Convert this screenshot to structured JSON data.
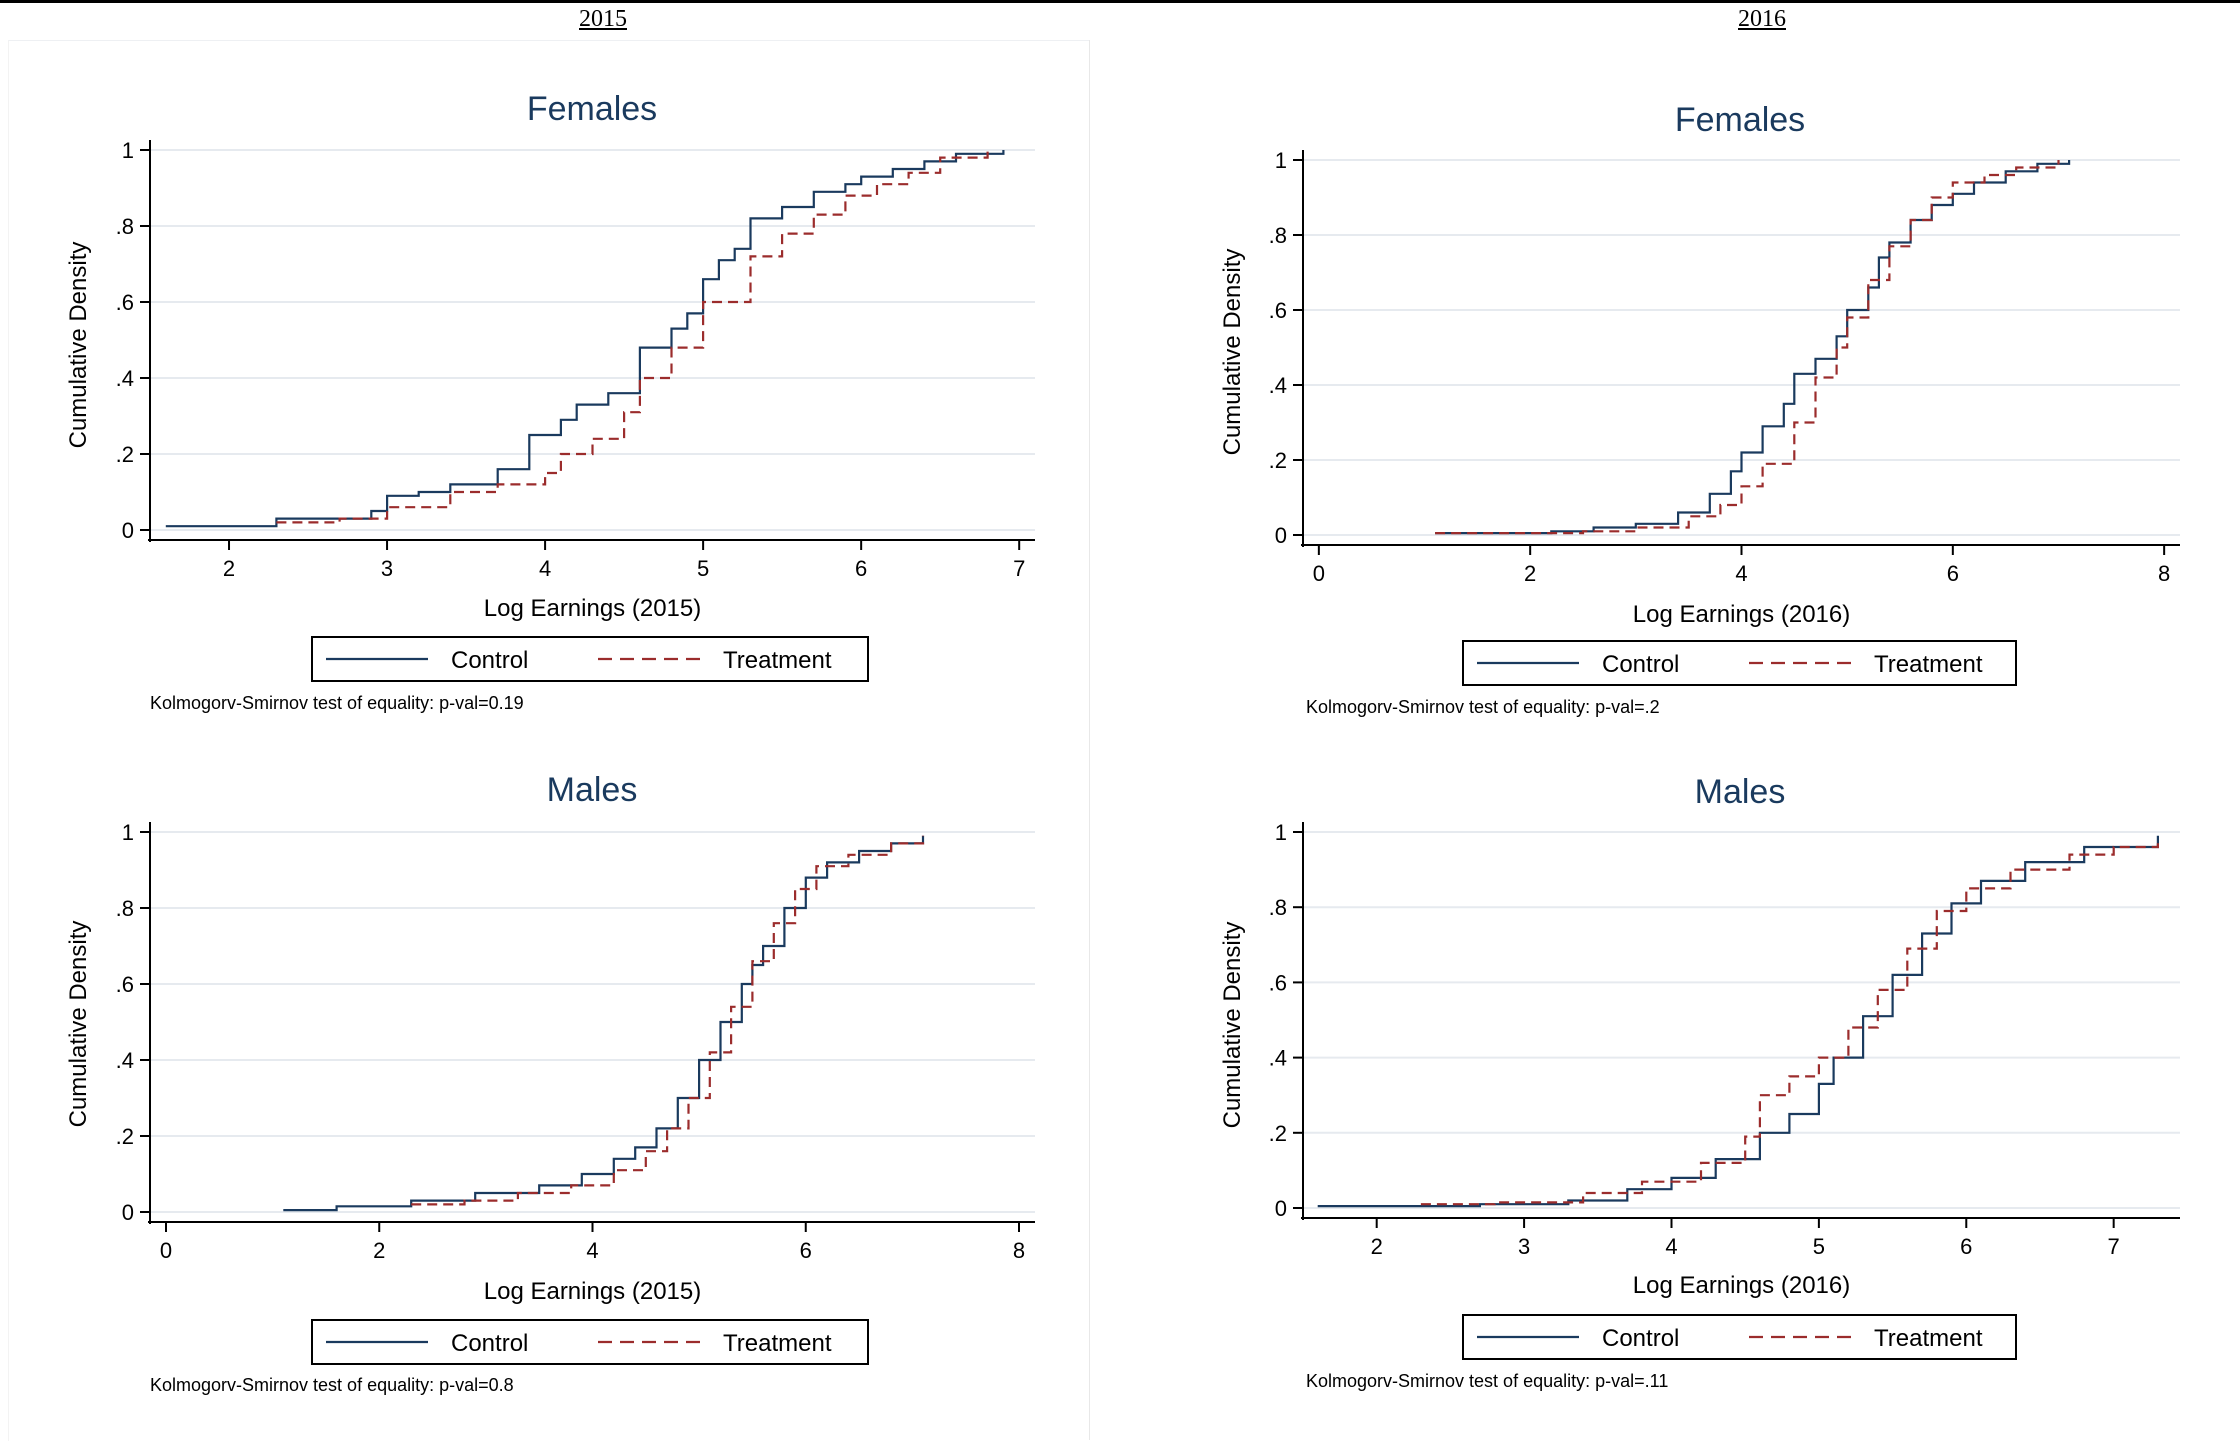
{
  "header": {
    "year_left": "2015",
    "year_right": "2016"
  },
  "chart_data": [
    {
      "type": "line",
      "title": "Females",
      "xlabel": "Log Earnings (2015)",
      "ylabel": "Cumulative Density",
      "xlim": [
        1.5,
        7.1
      ],
      "ylim": [
        0,
        1
      ],
      "xticks": [
        2,
        3,
        4,
        5,
        6,
        7
      ],
      "xtick_labels": [
        "2",
        "3",
        "4",
        "5",
        "6",
        "7"
      ],
      "yticks": [
        0,
        0.2,
        0.4,
        0.6,
        0.8,
        1
      ],
      "ytick_labels": [
        "0",
        ".2",
        ".4",
        ".6",
        ".8",
        "1"
      ],
      "grid": true,
      "legend": "bottom",
      "note": "Kolmogorv-Smirnov test of equality: p-val=0.19",
      "series": [
        {
          "name": "Control",
          "color": "#1a3a5e",
          "style": "solid",
          "x": [
            1.6,
            2.2,
            2.3,
            2.6,
            2.9,
            3.0,
            3.2,
            3.4,
            3.7,
            3.9,
            4.1,
            4.2,
            4.4,
            4.6,
            4.8,
            4.9,
            5.0,
            5.1,
            5.2,
            5.3,
            5.5,
            5.7,
            5.9,
            6.0,
            6.2,
            6.4,
            6.6,
            6.9
          ],
          "y": [
            0.01,
            0.01,
            0.03,
            0.03,
            0.05,
            0.09,
            0.1,
            0.12,
            0.16,
            0.25,
            0.29,
            0.33,
            0.36,
            0.48,
            0.53,
            0.57,
            0.66,
            0.71,
            0.74,
            0.82,
            0.85,
            0.89,
            0.91,
            0.93,
            0.95,
            0.97,
            0.99,
            1.0
          ]
        },
        {
          "name": "Treatment",
          "color": "#9b2c2c",
          "style": "dashed",
          "x": [
            2.3,
            2.7,
            3.0,
            3.4,
            3.7,
            4.0,
            4.1,
            4.3,
            4.5,
            4.6,
            4.8,
            5.0,
            5.3,
            5.5,
            5.7,
            5.9,
            6.1,
            6.3,
            6.5,
            6.8
          ],
          "y": [
            0.02,
            0.03,
            0.06,
            0.1,
            0.12,
            0.15,
            0.2,
            0.24,
            0.31,
            0.4,
            0.48,
            0.6,
            0.72,
            0.78,
            0.83,
            0.88,
            0.91,
            0.94,
            0.98,
            1.0
          ]
        }
      ]
    },
    {
      "type": "line",
      "title": "Females",
      "xlabel": "Log Earnings (2016)",
      "ylabel": "Cumulative Density",
      "xlim": [
        -0.15,
        8.15
      ],
      "ylim": [
        0,
        1
      ],
      "xticks": [
        0,
        2,
        4,
        6,
        8
      ],
      "xtick_labels": [
        "0",
        "2",
        "4",
        "6",
        "8"
      ],
      "yticks": [
        0,
        0.2,
        0.4,
        0.6,
        0.8,
        1
      ],
      "ytick_labels": [
        "0",
        ".2",
        ".4",
        ".6",
        ".8",
        "1"
      ],
      "grid": true,
      "legend": "bottom",
      "note": "Kolmogorv-Smirnov test of equality: p-val=.2",
      "series": [
        {
          "name": "Control",
          "color": "#1a3a5e",
          "style": "solid",
          "x": [
            1.1,
            1.8,
            2.2,
            2.6,
            3.0,
            3.4,
            3.7,
            3.9,
            4.0,
            4.2,
            4.4,
            4.5,
            4.7,
            4.9,
            5.0,
            5.2,
            5.3,
            5.4,
            5.6,
            5.8,
            6.0,
            6.2,
            6.5,
            6.8,
            7.1
          ],
          "y": [
            0.005,
            0.005,
            0.01,
            0.02,
            0.03,
            0.06,
            0.11,
            0.17,
            0.22,
            0.29,
            0.35,
            0.43,
            0.47,
            0.53,
            0.6,
            0.66,
            0.74,
            0.78,
            0.84,
            0.88,
            0.91,
            0.94,
            0.97,
            0.99,
            1.0
          ]
        },
        {
          "name": "Treatment",
          "color": "#9b2c2c",
          "style": "dashed",
          "x": [
            1.1,
            2.0,
            2.5,
            3.0,
            3.5,
            3.8,
            4.0,
            4.2,
            4.5,
            4.7,
            4.9,
            5.0,
            5.2,
            5.4,
            5.6,
            5.8,
            6.0,
            6.3,
            6.6,
            7.0
          ],
          "y": [
            0.005,
            0.005,
            0.01,
            0.02,
            0.05,
            0.08,
            0.13,
            0.19,
            0.3,
            0.42,
            0.5,
            0.58,
            0.68,
            0.77,
            0.84,
            0.9,
            0.94,
            0.96,
            0.98,
            1.0
          ]
        }
      ]
    },
    {
      "type": "line",
      "title": "Males",
      "xlabel": "Log Earnings (2015)",
      "ylabel": "Cumulative Density",
      "xlim": [
        -0.15,
        8.15
      ],
      "ylim": [
        0,
        1
      ],
      "xticks": [
        0,
        2,
        4,
        6,
        8
      ],
      "xtick_labels": [
        "0",
        "2",
        "4",
        "6",
        "8"
      ],
      "yticks": [
        0,
        0.2,
        0.4,
        0.6,
        0.8,
        1
      ],
      "ytick_labels": [
        "0",
        ".2",
        ".4",
        ".6",
        ".8",
        "1"
      ],
      "grid": true,
      "legend": "bottom",
      "note": "Kolmogorv-Smirnov test of equality: p-val=0.8",
      "series": [
        {
          "name": "Control",
          "color": "#1a3a5e",
          "style": "solid",
          "x": [
            1.1,
            1.6,
            2.3,
            2.9,
            3.5,
            3.9,
            4.2,
            4.4,
            4.6,
            4.8,
            5.0,
            5.2,
            5.4,
            5.5,
            5.6,
            5.8,
            6.0,
            6.2,
            6.5,
            6.8,
            7.1
          ],
          "y": [
            0.005,
            0.015,
            0.03,
            0.05,
            0.07,
            0.1,
            0.14,
            0.17,
            0.22,
            0.3,
            0.4,
            0.5,
            0.6,
            0.65,
            0.7,
            0.8,
            0.88,
            0.92,
            0.95,
            0.97,
            0.99
          ]
        },
        {
          "name": "Treatment",
          "color": "#9b2c2c",
          "style": "dashed",
          "x": [
            2.3,
            2.8,
            3.3,
            3.8,
            4.2,
            4.5,
            4.7,
            4.9,
            5.1,
            5.3,
            5.5,
            5.7,
            5.9,
            6.1,
            6.4,
            6.8,
            7.1
          ],
          "y": [
            0.02,
            0.03,
            0.05,
            0.07,
            0.11,
            0.16,
            0.22,
            0.3,
            0.42,
            0.54,
            0.66,
            0.76,
            0.85,
            0.91,
            0.94,
            0.97,
            0.99
          ]
        }
      ]
    },
    {
      "type": "line",
      "title": "Males",
      "xlabel": "Log Earnings (2016)",
      "ylabel": "Cumulative Density",
      "xlim": [
        1.5,
        7.45
      ],
      "ylim": [
        0,
        1
      ],
      "xticks": [
        2,
        3,
        4,
        5,
        6,
        7
      ],
      "xtick_labels": [
        "2",
        "3",
        "4",
        "5",
        "6",
        "7"
      ],
      "yticks": [
        0,
        0.2,
        0.4,
        0.6,
        0.8,
        1
      ],
      "ytick_labels": [
        "0",
        ".2",
        ".4",
        ".6",
        ".8",
        "1"
      ],
      "grid": true,
      "legend": "bottom",
      "note": "Kolmogorv-Smirnov test of equality: p-val=.11",
      "series": [
        {
          "name": "Control",
          "color": "#1a3a5e",
          "style": "solid",
          "x": [
            1.6,
            2.3,
            2.7,
            3.3,
            3.7,
            4.0,
            4.3,
            4.6,
            4.8,
            5.0,
            5.1,
            5.3,
            5.5,
            5.7,
            5.9,
            6.1,
            6.4,
            6.8,
            7.3
          ],
          "y": [
            0.005,
            0.005,
            0.01,
            0.02,
            0.05,
            0.08,
            0.13,
            0.2,
            0.25,
            0.33,
            0.4,
            0.51,
            0.62,
            0.73,
            0.81,
            0.87,
            0.92,
            0.96,
            0.99
          ]
        },
        {
          "name": "Treatment",
          "color": "#9b2c2c",
          "style": "dashed",
          "x": [
            2.3,
            2.8,
            3.4,
            3.8,
            4.2,
            4.5,
            4.6,
            4.8,
            5.0,
            5.2,
            5.4,
            5.6,
            5.8,
            6.0,
            6.3,
            6.7,
            7.0,
            7.3
          ],
          "y": [
            0.01,
            0.015,
            0.04,
            0.07,
            0.12,
            0.19,
            0.3,
            0.35,
            0.4,
            0.48,
            0.58,
            0.69,
            0.79,
            0.85,
            0.9,
            0.94,
            0.96,
            0.98
          ]
        }
      ]
    }
  ]
}
